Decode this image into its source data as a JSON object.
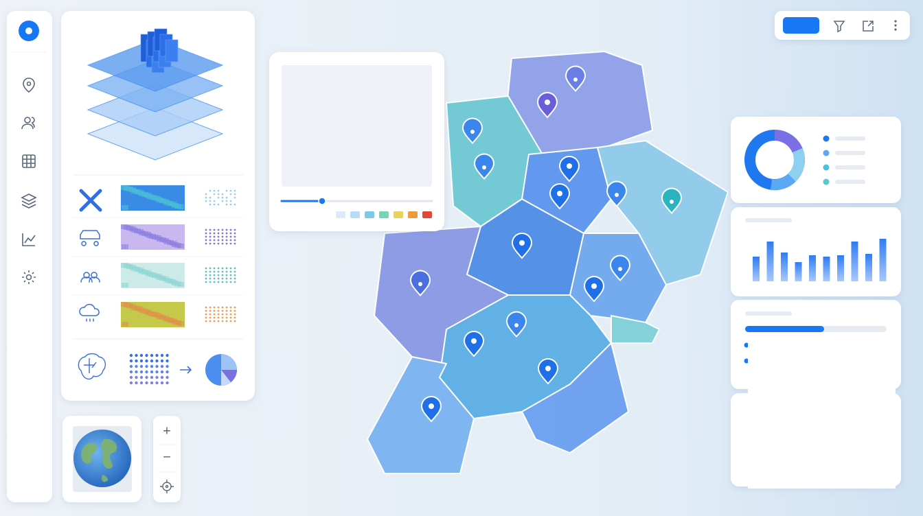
{
  "zoom_controls": {
    "in": "+",
    "out": "−"
  }
}
